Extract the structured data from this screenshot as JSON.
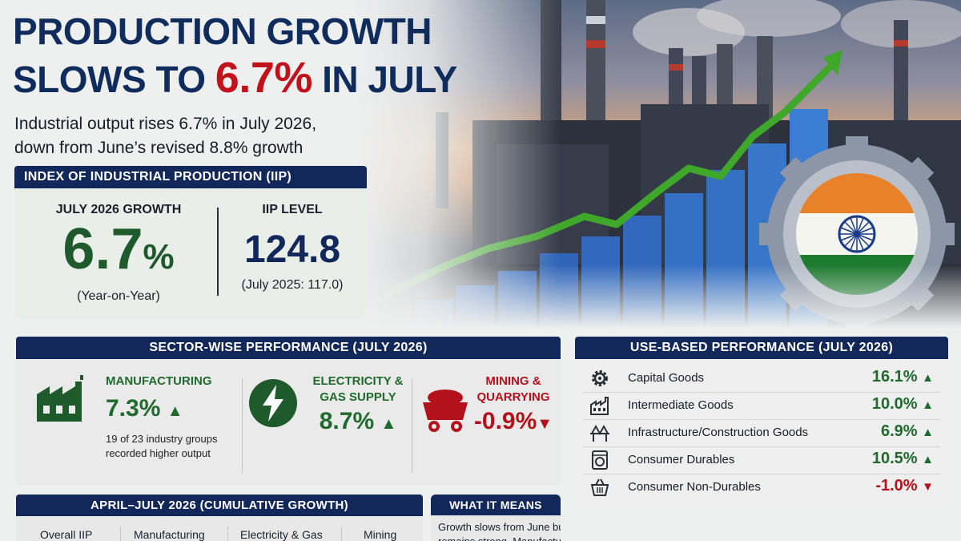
{
  "headline": {
    "line1": "PRODUCTION GROWTH",
    "line2_before": "SLOWS TO ",
    "line2_accent": "6.7%",
    "line2_after": " IN JULY"
  },
  "subhead": {
    "line1": "Industrial output rises 6.7% in July 2026,",
    "line2": "down from June’s revised 8.8% growth"
  },
  "iip": {
    "header": "INDEX OF INDUSTRIAL PRODUCTION (IIP)",
    "growth_label": "JULY 2026 GROWTH",
    "growth_value": "6.7",
    "growth_unit": "%",
    "growth_note": "(Year-on-Year)",
    "level_label": "IIP LEVEL",
    "level_value": "124.8",
    "level_note": "(July 2025: 117.0)"
  },
  "sectors": {
    "header": "SECTOR-WISE PERFORMANCE (JULY 2026)",
    "items": [
      {
        "name": "MANUFACTURING",
        "value": "7.3%",
        "arrow": "▲",
        "icon": "factory-icon",
        "note_line1": "19 of 23 industry groups",
        "note_line2": "recorded higher output"
      },
      {
        "name_line1": "ELECTRICITY &",
        "name_line2": "GAS SUPPLY",
        "value": "8.7%",
        "arrow": "▲",
        "icon": "lightning-icon"
      },
      {
        "name_line1": "MINING &",
        "name_line2": "QUARRYING",
        "value": "-0.9%",
        "arrow": "▼",
        "icon": "mine-cart-icon"
      }
    ]
  },
  "use_based": {
    "header": "USE-BASED PERFORMANCE (JULY 2026)",
    "items": [
      {
        "name": "Capital Goods",
        "value": "16.1%",
        "arrow": "▲",
        "icon": "gear-icon",
        "trend": "up"
      },
      {
        "name": "Intermediate Goods",
        "value": "10.0%",
        "arrow": "▲",
        "icon": "factory-icon",
        "trend": "up"
      },
      {
        "name": "Infrastructure/Construction Goods",
        "value": "6.9%",
        "arrow": "▲",
        "icon": "bridge-icon",
        "trend": "up"
      },
      {
        "name": "Consumer Durables",
        "value": "10.5%",
        "arrow": "▲",
        "icon": "washing-machine-icon",
        "trend": "up"
      },
      {
        "name": "Consumer Non-Durables",
        "value": "-1.0%",
        "arrow": "▼",
        "icon": "basket-icon",
        "trend": "down"
      }
    ]
  },
  "cumulative": {
    "header": "APRIL–JULY 2026 (CUMULATIVE GROWTH)",
    "items": [
      "Overall IIP",
      "Manufacturing",
      "Electricity & Gas",
      "Mining"
    ]
  },
  "what_it_means": {
    "header": "WHAT IT MEANS",
    "line1": "Growth slows from June but",
    "line2": "remains strong. Manufacturing"
  },
  "colors": {
    "navy": "#12275a",
    "green": "#1f6a2c",
    "red": "#b3121c",
    "saffron": "#e8822a",
    "india_green": "#1e7a2f",
    "bar_blue": "#2f64b8"
  },
  "hero_chart": {
    "type": "bar",
    "values": [
      1,
      1.5,
      2,
      2.6,
      3.2,
      3.9,
      4.7,
      5.5,
      6.4,
      7.6
    ],
    "trend": "up"
  }
}
